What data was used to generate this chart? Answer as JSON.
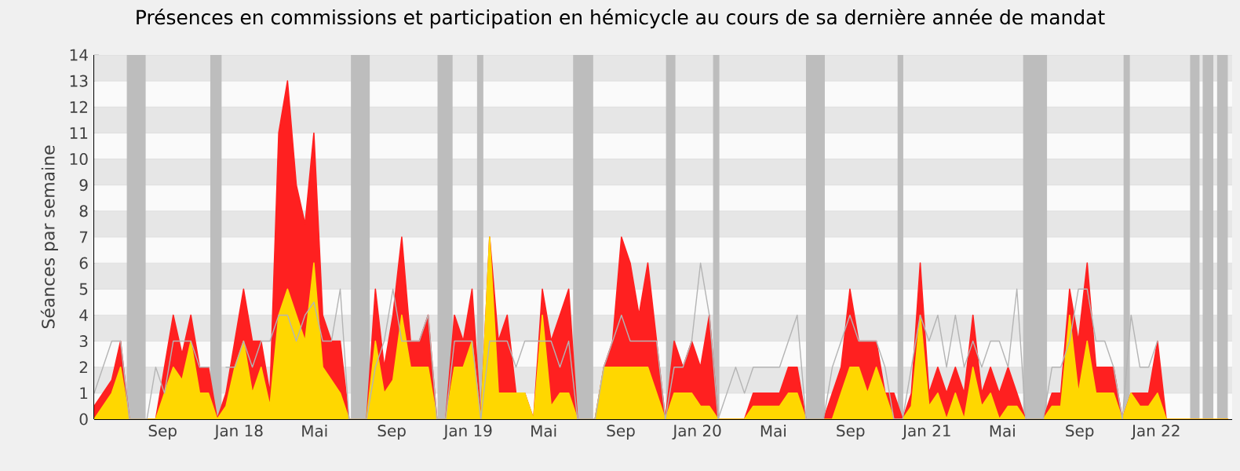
{
  "chart_data": {
    "type": "area",
    "title": "Présences en commissions et participation en hémicycle au cours de sa dernière année de mandat",
    "ylabel": "Séances par semaine",
    "x": [
      "2017-05-15",
      "2017-05-29",
      "2017-06-12",
      "2017-06-26",
      "2017-07-10",
      "2017-07-24",
      "2017-08-07",
      "2017-08-21",
      "2017-09-04",
      "2017-09-18",
      "2017-10-02",
      "2017-10-16",
      "2017-10-30",
      "2017-11-13",
      "2017-11-27",
      "2017-12-11",
      "2017-12-25",
      "2018-01-08",
      "2018-01-22",
      "2018-02-05",
      "2018-02-19",
      "2018-03-05",
      "2018-03-19",
      "2018-04-02",
      "2018-04-16",
      "2018-04-30",
      "2018-05-14",
      "2018-05-28",
      "2018-06-11",
      "2018-06-25",
      "2018-07-09",
      "2018-07-23",
      "2018-08-06",
      "2018-08-20",
      "2018-09-03",
      "2018-09-17",
      "2018-10-01",
      "2018-10-15",
      "2018-10-29",
      "2018-11-12",
      "2018-11-26",
      "2018-12-10",
      "2018-12-24",
      "2019-01-07",
      "2019-01-21",
      "2019-02-04",
      "2019-02-18",
      "2019-03-04",
      "2019-03-18",
      "2019-04-01",
      "2019-04-15",
      "2019-04-29",
      "2019-05-13",
      "2019-05-27",
      "2019-06-10",
      "2019-06-24",
      "2019-07-08",
      "2019-07-22",
      "2019-08-05",
      "2019-08-19",
      "2019-09-02",
      "2019-09-16",
      "2019-09-30",
      "2019-10-14",
      "2019-10-28",
      "2019-11-11",
      "2019-11-25",
      "2019-12-09",
      "2019-12-23",
      "2020-01-06",
      "2020-01-20",
      "2020-02-03",
      "2020-02-17",
      "2020-03-02",
      "2020-03-16",
      "2020-03-30",
      "2020-04-13",
      "2020-04-27",
      "2020-05-11",
      "2020-05-25",
      "2020-06-08",
      "2020-06-22",
      "2020-07-06",
      "2020-07-20",
      "2020-08-03",
      "2020-08-17",
      "2020-08-31",
      "2020-09-14",
      "2020-09-28",
      "2020-10-12",
      "2020-10-26",
      "2020-11-09",
      "2020-11-23",
      "2020-12-07",
      "2020-12-21",
      "2021-01-04",
      "2021-01-18",
      "2021-02-01",
      "2021-02-15",
      "2021-03-01",
      "2021-03-15",
      "2021-03-29",
      "2021-04-12",
      "2021-04-26",
      "2021-05-10",
      "2021-05-24",
      "2021-06-07",
      "2021-06-21",
      "2021-07-05",
      "2021-07-19",
      "2021-08-02",
      "2021-08-16",
      "2021-08-30",
      "2021-09-13",
      "2021-09-27",
      "2021-10-11",
      "2021-10-25",
      "2021-11-08",
      "2021-11-22",
      "2021-12-06",
      "2021-12-20",
      "2022-01-03",
      "2022-01-17",
      "2022-01-31",
      "2022-02-14",
      "2022-02-28",
      "2022-03-14",
      "2022-03-28",
      "2022-04-11",
      "2022-04-25"
    ],
    "series": [
      {
        "color": "#ff2020",
        "values": [
          0.5,
          1,
          1.5,
          3,
          0,
          0,
          0,
          0,
          2,
          4,
          2.5,
          4,
          2,
          2,
          0,
          1,
          3,
          5,
          3,
          3,
          1,
          11,
          13,
          9,
          7.5,
          11,
          4,
          3,
          3,
          0,
          0,
          0,
          5,
          2,
          4,
          7,
          3,
          3,
          4,
          0,
          0,
          4,
          3,
          5,
          0,
          7,
          3,
          4,
          1,
          1,
          0,
          5,
          3,
          4,
          5,
          0,
          0,
          0,
          2,
          3,
          7,
          6,
          4,
          6,
          3,
          0,
          3,
          2,
          3,
          2,
          4,
          0,
          0,
          0,
          0,
          1,
          1,
          1,
          1,
          2,
          2,
          0,
          0,
          0,
          1,
          2,
          5,
          3,
          3,
          3,
          1,
          1,
          0,
          1,
          6,
          1,
          2,
          1,
          2,
          1,
          4,
          1,
          2,
          1,
          2,
          1,
          0,
          0,
          0,
          1,
          1,
          5,
          3,
          6,
          2,
          2,
          2,
          0,
          1,
          1,
          1,
          3,
          0,
          0,
          0,
          0,
          0,
          0,
          0,
          0
        ]
      },
      {
        "color": "#ffd700",
        "values": [
          0,
          0.5,
          1,
          2,
          0,
          0,
          0,
          0,
          1,
          2,
          1.5,
          3,
          1,
          1,
          0,
          0.5,
          2,
          3,
          1,
          2,
          0.5,
          4,
          5,
          4,
          3,
          6,
          2,
          1.5,
          1,
          0,
          0,
          0,
          3,
          1,
          1.5,
          4,
          2,
          2,
          2,
          0,
          0,
          2,
          2,
          3,
          0,
          7,
          1,
          1,
          1,
          1,
          0,
          4,
          0.5,
          1,
          1,
          0,
          0,
          0,
          2,
          2,
          2,
          2,
          2,
          2,
          1,
          0,
          1,
          1,
          1,
          0.5,
          0.5,
          0,
          0,
          0,
          0,
          0.5,
          0.5,
          0.5,
          0.5,
          1,
          1,
          0,
          0,
          0,
          0,
          1,
          2,
          2,
          1,
          2,
          1,
          0,
          0,
          0.5,
          4,
          0.5,
          1,
          0,
          1,
          0,
          2,
          0.5,
          1,
          0,
          0.5,
          0.5,
          0,
          0,
          0,
          0.5,
          0.5,
          4,
          1,
          3,
          1,
          1,
          1,
          0,
          1,
          0.5,
          0.5,
          1,
          0,
          0,
          0,
          0,
          0,
          0,
          0,
          0
        ]
      },
      {
        "type": "line",
        "color": "#b4b4b4",
        "values": [
          1,
          2,
          3,
          3,
          0,
          0,
          0,
          2,
          1,
          3,
          3,
          3,
          2,
          2,
          null,
          2,
          2,
          3,
          2,
          3,
          3,
          4,
          4,
          3,
          4,
          4.5,
          3,
          3,
          5,
          0,
          0,
          0,
          2,
          3,
          5,
          3,
          3,
          3,
          4,
          0,
          0,
          3,
          3,
          3,
          0,
          3,
          3,
          3,
          2,
          3,
          3,
          3,
          3,
          2,
          3,
          0,
          0,
          0,
          2,
          3,
          4,
          3,
          3,
          3,
          3,
          0,
          2,
          2,
          3,
          6,
          4,
          0,
          1,
          2,
          1,
          2,
          2,
          2,
          2,
          3,
          4,
          0,
          0,
          0,
          2,
          3,
          4,
          3,
          3,
          3,
          2,
          0,
          0,
          2,
          4,
          3,
          4,
          2,
          4,
          2,
          3,
          2,
          3,
          3,
          2,
          5,
          0,
          0,
          0,
          2,
          2,
          3,
          5,
          5,
          3,
          3,
          2,
          0,
          4,
          2,
          2,
          3,
          null,
          null,
          null,
          null,
          null,
          null,
          null,
          null
        ]
      }
    ],
    "xlim": [
      "2017-05-15",
      "2022-05-02"
    ],
    "ylim": [
      0,
      14
    ],
    "xticks": [
      {
        "value": "2017-09-01",
        "label": "Sep"
      },
      {
        "value": "2018-01-01",
        "label": "Jan 18"
      },
      {
        "value": "2018-05-01",
        "label": "Mai"
      },
      {
        "value": "2018-09-01",
        "label": "Sep"
      },
      {
        "value": "2019-01-01",
        "label": "Jan 19"
      },
      {
        "value": "2019-05-01",
        "label": "Mai"
      },
      {
        "value": "2019-09-01",
        "label": "Sep"
      },
      {
        "value": "2020-01-01",
        "label": "Jan 20"
      },
      {
        "value": "2020-05-01",
        "label": "Mai"
      },
      {
        "value": "2020-09-01",
        "label": "Sep"
      },
      {
        "value": "2021-01-01",
        "label": "Jan 21"
      },
      {
        "value": "2021-05-01",
        "label": "Mai"
      },
      {
        "value": "2021-09-01",
        "label": "Sep"
      },
      {
        "value": "2022-01-01",
        "label": "Jan 22"
      }
    ],
    "yticks": [
      0,
      1,
      2,
      3,
      4,
      5,
      6,
      7,
      8,
      9,
      10,
      11,
      12,
      13,
      14
    ],
    "grid": "y",
    "bands": [
      {
        "axis": "x",
        "from": "2017-07-06",
        "to": "2017-08-05",
        "color": "#bdbdbd"
      },
      {
        "axis": "x",
        "from": "2017-11-16",
        "to": "2017-12-04",
        "color": "#bdbdbd"
      },
      {
        "axis": "x",
        "from": "2018-06-28",
        "to": "2018-07-28",
        "color": "#bdbdbd"
      },
      {
        "axis": "x",
        "from": "2018-11-13",
        "to": "2018-12-07",
        "color": "#bdbdbd"
      },
      {
        "axis": "x",
        "from": "2019-01-15",
        "to": "2019-01-25",
        "color": "#bdbdbd"
      },
      {
        "axis": "x",
        "from": "2019-06-17",
        "to": "2019-07-19",
        "color": "#bdbdbd"
      },
      {
        "axis": "x",
        "from": "2019-11-12",
        "to": "2019-11-27",
        "color": "#bdbdbd"
      },
      {
        "axis": "x",
        "from": "2020-01-26",
        "to": "2020-02-05",
        "color": "#bdbdbd"
      },
      {
        "axis": "x",
        "from": "2020-06-22",
        "to": "2020-07-22",
        "color": "#bdbdbd"
      },
      {
        "axis": "x",
        "from": "2020-11-15",
        "to": "2020-11-24",
        "color": "#bdbdbd"
      },
      {
        "axis": "x",
        "from": "2021-06-03",
        "to": "2021-07-11",
        "color": "#bdbdbd"
      },
      {
        "axis": "x",
        "from": "2021-11-10",
        "to": "2021-11-20",
        "color": "#bdbdbd"
      },
      {
        "axis": "x",
        "from": "2022-02-24",
        "to": "2022-03-11",
        "color": "#bdbdbd"
      },
      {
        "axis": "x",
        "from": "2022-03-16",
        "to": "2022-04-02",
        "color": "#bdbdbd"
      },
      {
        "axis": "x",
        "from": "2022-04-08",
        "to": "2022-04-25",
        "color": "#bdbdbd"
      }
    ]
  }
}
